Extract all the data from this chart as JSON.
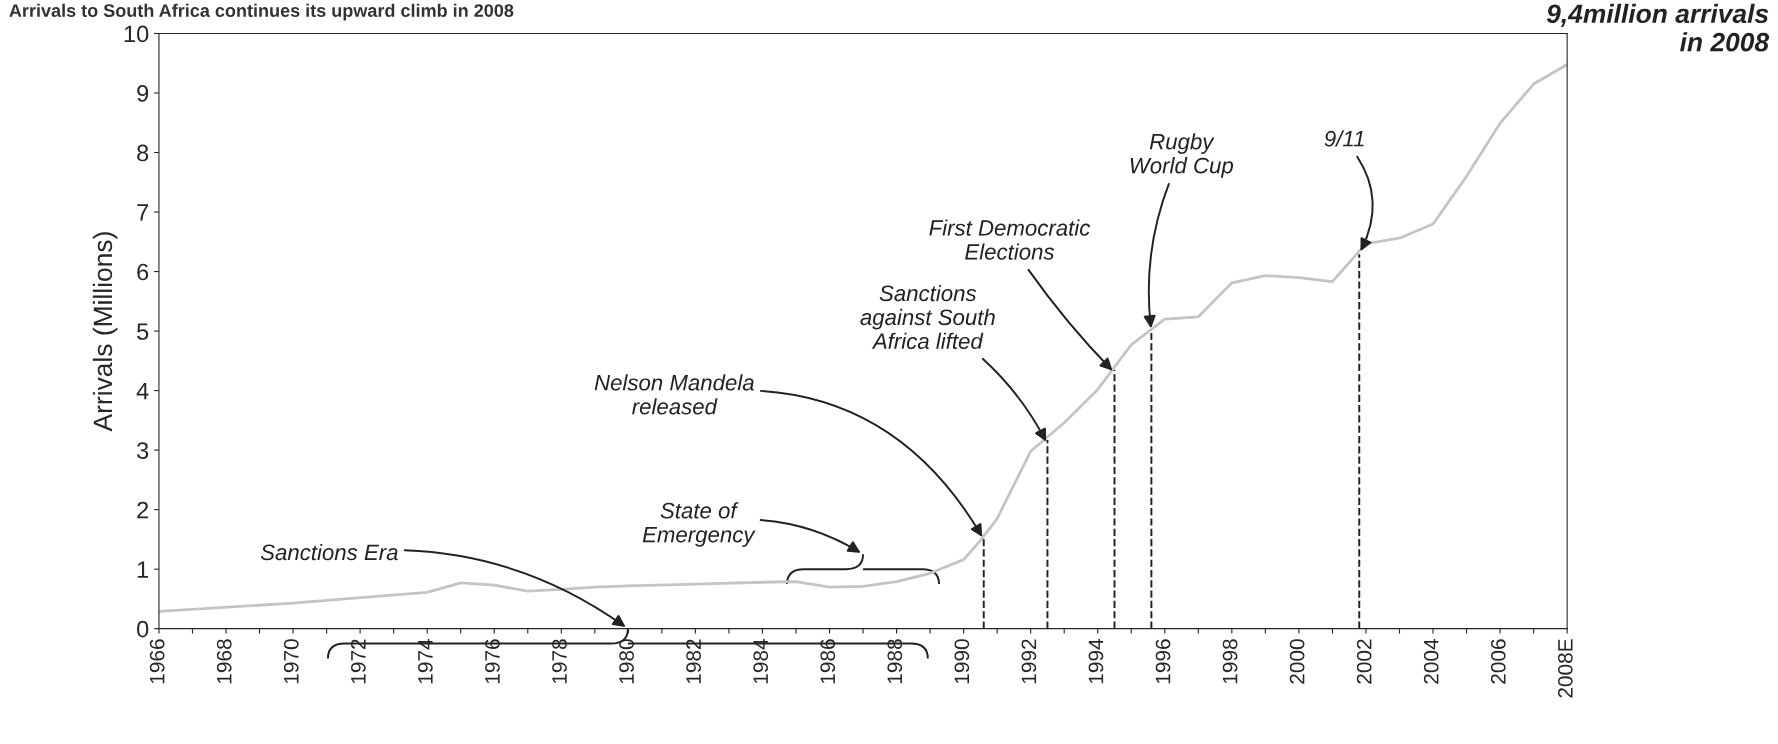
{
  "chart_data": {
    "type": "line",
    "title": "Arrivals to South Africa continues its upward climb in 2008",
    "ylabel": "Arrivals (Millions)",
    "x": [
      1966,
      1970,
      1972,
      1974,
      1975,
      1976,
      1977,
      1978,
      1979,
      1980,
      1982,
      1984,
      1985,
      1986,
      1987,
      1988,
      1989,
      1990,
      1990.5,
      1991,
      1992,
      1993,
      1994,
      1995,
      1996,
      1997,
      1998,
      1999,
      2000,
      2001,
      2002,
      2003,
      2004,
      2005,
      2006,
      2007,
      2008
    ],
    "series": [
      {
        "color": "#c4c4c4",
        "values": [
          0.29,
          0.43,
          0.52,
          0.61,
          0.77,
          0.73,
          0.63,
          0.66,
          0.7,
          0.72,
          0.75,
          0.78,
          0.79,
          0.7,
          0.71,
          0.79,
          0.93,
          1.16,
          1.48,
          1.85,
          2.98,
          3.46,
          4.02,
          4.77,
          5.2,
          5.24,
          5.81,
          5.93,
          5.9,
          5.83,
          6.47,
          6.56,
          6.8,
          7.6,
          8.49,
          9.15,
          9.48
        ]
      }
    ],
    "xlim": [
      1966,
      2008
    ],
    "xticks": [
      1966,
      {
        "value": 1967,
        "label": null
      },
      1968,
      {
        "value": 1969,
        "label": null
      },
      1970,
      {
        "value": 1971,
        "label": null
      },
      1972,
      {
        "value": 1973,
        "label": null
      },
      1974,
      {
        "value": 1975,
        "label": null
      },
      1976,
      {
        "value": 1977,
        "label": null
      },
      1978,
      {
        "value": 1979,
        "label": null
      },
      1980,
      {
        "value": 1981,
        "label": null
      },
      1982,
      {
        "value": 1983,
        "label": null
      },
      1984,
      {
        "value": 1985,
        "label": null
      },
      1986,
      {
        "value": 1987,
        "label": null
      },
      1988,
      {
        "value": 1989,
        "label": null
      },
      1990,
      {
        "value": 1991,
        "label": null
      },
      1992,
      {
        "value": 1993,
        "label": null
      },
      1994,
      {
        "value": 1995,
        "label": null
      },
      1996,
      {
        "value": 1997,
        "label": null
      },
      1998,
      {
        "value": 1999,
        "label": null
      },
      2000,
      {
        "value": 2001,
        "label": null
      },
      2002,
      {
        "value": 2003,
        "label": null
      },
      2004,
      {
        "value": 2005,
        "label": null
      },
      2006,
      {
        "value": 2007,
        "label": null
      },
      {
        "value": 2008,
        "label": "2008E"
      }
    ],
    "ylim": [
      0,
      10
    ],
    "yticks": [
      0,
      1,
      2,
      3,
      4,
      5,
      6,
      7,
      8,
      9,
      10
    ],
    "grid": false,
    "legend": false,
    "marker": "none",
    "line_style": "solid",
    "ref_lines": [
      {
        "axis": "x",
        "value": 1990.6,
        "line_style": "dashed"
      },
      {
        "axis": "x",
        "value": 1992.5,
        "line_style": "dashed"
      },
      {
        "axis": "x",
        "value": 1994.5,
        "line_style": "dashed"
      },
      {
        "axis": "x",
        "value": 1995.6,
        "line_style": "dashed"
      },
      {
        "axis": "x",
        "value": 2001.8,
        "line_style": "dashed"
      }
    ],
    "annotations": [
      {
        "text": "Nelson Mandela\nreleased",
        "x": 1990.6,
        "y": 1.5
      },
      {
        "text": "Sanctions\nagainst South\nAfrica lifted",
        "x": 1992.5,
        "y": 3.1
      },
      {
        "text": "First Democratic\nElections",
        "x": 1994.5,
        "y": 4.3
      },
      {
        "text": "Rugby\nWorld Cup",
        "x": 1995.6,
        "y": 5.0
      },
      {
        "text": "9/11",
        "x": 2001.8,
        "y": 6.3
      },
      "Sanctions Era",
      "State of\nEmergency",
      "9,4million arrivals\nin 2008"
    ]
  }
}
